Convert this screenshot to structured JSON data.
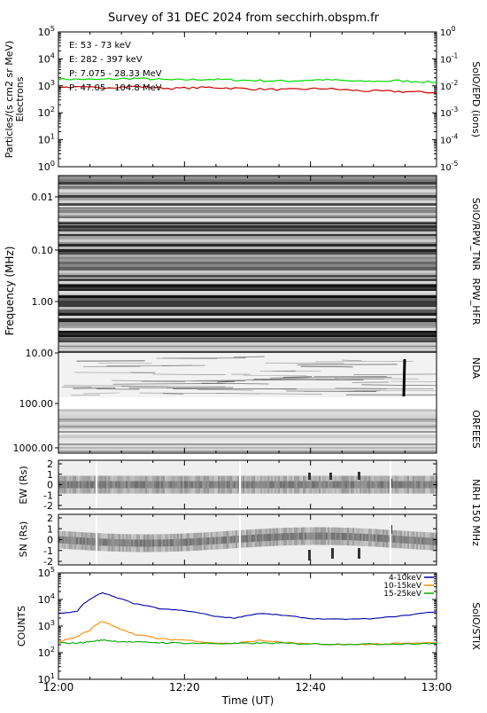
{
  "title": "Survey of 31 DEC 2024 from secchirh.obspm.fr",
  "xlabel": "Time (UT)",
  "x_ticks": [
    "12:00",
    "12:20",
    "12:40",
    "13:00"
  ],
  "panels": {
    "epd": {
      "ylabel_1": "Particles/(s cm2 sr MeV)",
      "ylabel_2": "Electrons",
      "right_label": "SolO/EPD (ions)",
      "left_ticks": [
        {
          "m": "10",
          "e": "0"
        },
        {
          "m": "10",
          "e": "1"
        },
        {
          "m": "10",
          "e": "2"
        },
        {
          "m": "10",
          "e": "3"
        },
        {
          "m": "10",
          "e": "4"
        },
        {
          "m": "10",
          "e": "5"
        }
      ],
      "right_ticks": [
        {
          "m": "10",
          "e": "-5"
        },
        {
          "m": "10",
          "e": "-4"
        },
        {
          "m": "10",
          "e": "-3"
        },
        {
          "m": "10",
          "e": "-2"
        },
        {
          "m": "10",
          "e": "-1"
        },
        {
          "m": "10",
          "e": "0"
        }
      ],
      "legend": [
        {
          "text": "E: 53 - 73 keV",
          "color": "#00cc00"
        },
        {
          "text": "E: 282 - 397 keV",
          "color": "#cc0000"
        },
        {
          "text": "P: 7.075 - 28.33 MeV",
          "color": "#000000"
        },
        {
          "text": "P: 47.05 - 104.8 MeV",
          "color": "#6600aa"
        }
      ]
    },
    "radio": {
      "ylabel": "Frequency (MHz)",
      "y_ticks": [
        "0.01",
        "0.10",
        "1.00",
        "10.00",
        "100.00",
        "1000.00"
      ],
      "right_labels": [
        "SolO/RPW_TNR",
        "RPW_HFR",
        "NDA",
        "ORFEES"
      ]
    },
    "nrh": {
      "ew_label": "EW (Rs)",
      "sn_label": "SN (Rs)",
      "right_label": "NRH 150 MHz",
      "y_ticks": [
        "2",
        "1",
        "0",
        "-1",
        "-2"
      ]
    },
    "stix": {
      "ylabel": "COUNTS",
      "right_label": "SolO/STIX",
      "y_ticks": [
        {
          "m": "10",
          "e": "1"
        },
        {
          "m": "10",
          "e": "2"
        },
        {
          "m": "10",
          "e": "3"
        },
        {
          "m": "10",
          "e": "4"
        },
        {
          "m": "10",
          "e": "5"
        }
      ],
      "legend": [
        {
          "text": "4-10keV",
          "color": "#0000aa"
        },
        {
          "text": "10-15keV",
          "color": "#ff8800"
        },
        {
          "text": "15-25keV",
          "color": "#00aa00"
        }
      ]
    }
  },
  "chart_data": [
    {
      "type": "line",
      "title": "",
      "ylabel": "Particles/(s cm2 sr MeV) Electrons",
      "y_scale": "log",
      "ylim": [
        1,
        100000
      ],
      "x": [
        "12:00",
        "12:06",
        "12:12",
        "12:18",
        "12:24",
        "12:30",
        "12:36",
        "12:42",
        "12:48",
        "12:54",
        "13:00"
      ],
      "series": [
        {
          "name": "E: 53 - 73 keV",
          "values": [
            1800,
            1700,
            1900,
            1650,
            1750,
            1600,
            1500,
            1700,
            1450,
            1550,
            1350
          ]
        },
        {
          "name": "E: 282 - 397 keV",
          "values": [
            900,
            850,
            950,
            800,
            880,
            780,
            720,
            800,
            650,
            620,
            560
          ]
        }
      ]
    },
    {
      "type": "heatmap",
      "title": "",
      "ylabel": "Frequency (MHz)",
      "y_scale": "log",
      "ylim": [
        0.005,
        1500
      ],
      "instruments": [
        "SolO/RPW_TNR",
        "RPW_HFR",
        "NDA",
        "ORFEES"
      ]
    },
    {
      "type": "heatmap",
      "title": "",
      "ylabel": "EW (Rs)",
      "ylim": [
        -2.5,
        2.5
      ],
      "instrument": "NRH 150 MHz"
    },
    {
      "type": "heatmap",
      "title": "",
      "ylabel": "SN (Rs)",
      "ylim": [
        -2.5,
        2.5
      ],
      "instrument": "NRH 150 MHz"
    },
    {
      "type": "line",
      "title": "",
      "ylabel": "COUNTS",
      "y_scale": "log",
      "ylim": [
        10,
        100000
      ],
      "x": [
        "12:00",
        "12:03",
        "12:05",
        "12:07",
        "12:09",
        "12:12",
        "12:16",
        "12:20",
        "12:25",
        "12:28",
        "12:32",
        "12:36",
        "12:40",
        "12:45",
        "12:50",
        "12:55",
        "13:00"
      ],
      "series": [
        {
          "name": "4-10keV",
          "values": [
            3000,
            3500,
            10000,
            18000,
            12000,
            7000,
            4500,
            3800,
            2300,
            2000,
            3000,
            2500,
            1900,
            1800,
            1900,
            2500,
            3500
          ]
        },
        {
          "name": "10-15keV",
          "values": [
            250,
            400,
            700,
            1500,
            900,
            500,
            330,
            300,
            230,
            220,
            290,
            240,
            210,
            200,
            210,
            220,
            240
          ]
        },
        {
          "name": "15-25keV",
          "values": [
            230,
            230,
            260,
            300,
            270,
            250,
            240,
            230,
            220,
            220,
            230,
            225,
            215,
            210,
            210,
            215,
            220
          ]
        }
      ]
    }
  ]
}
